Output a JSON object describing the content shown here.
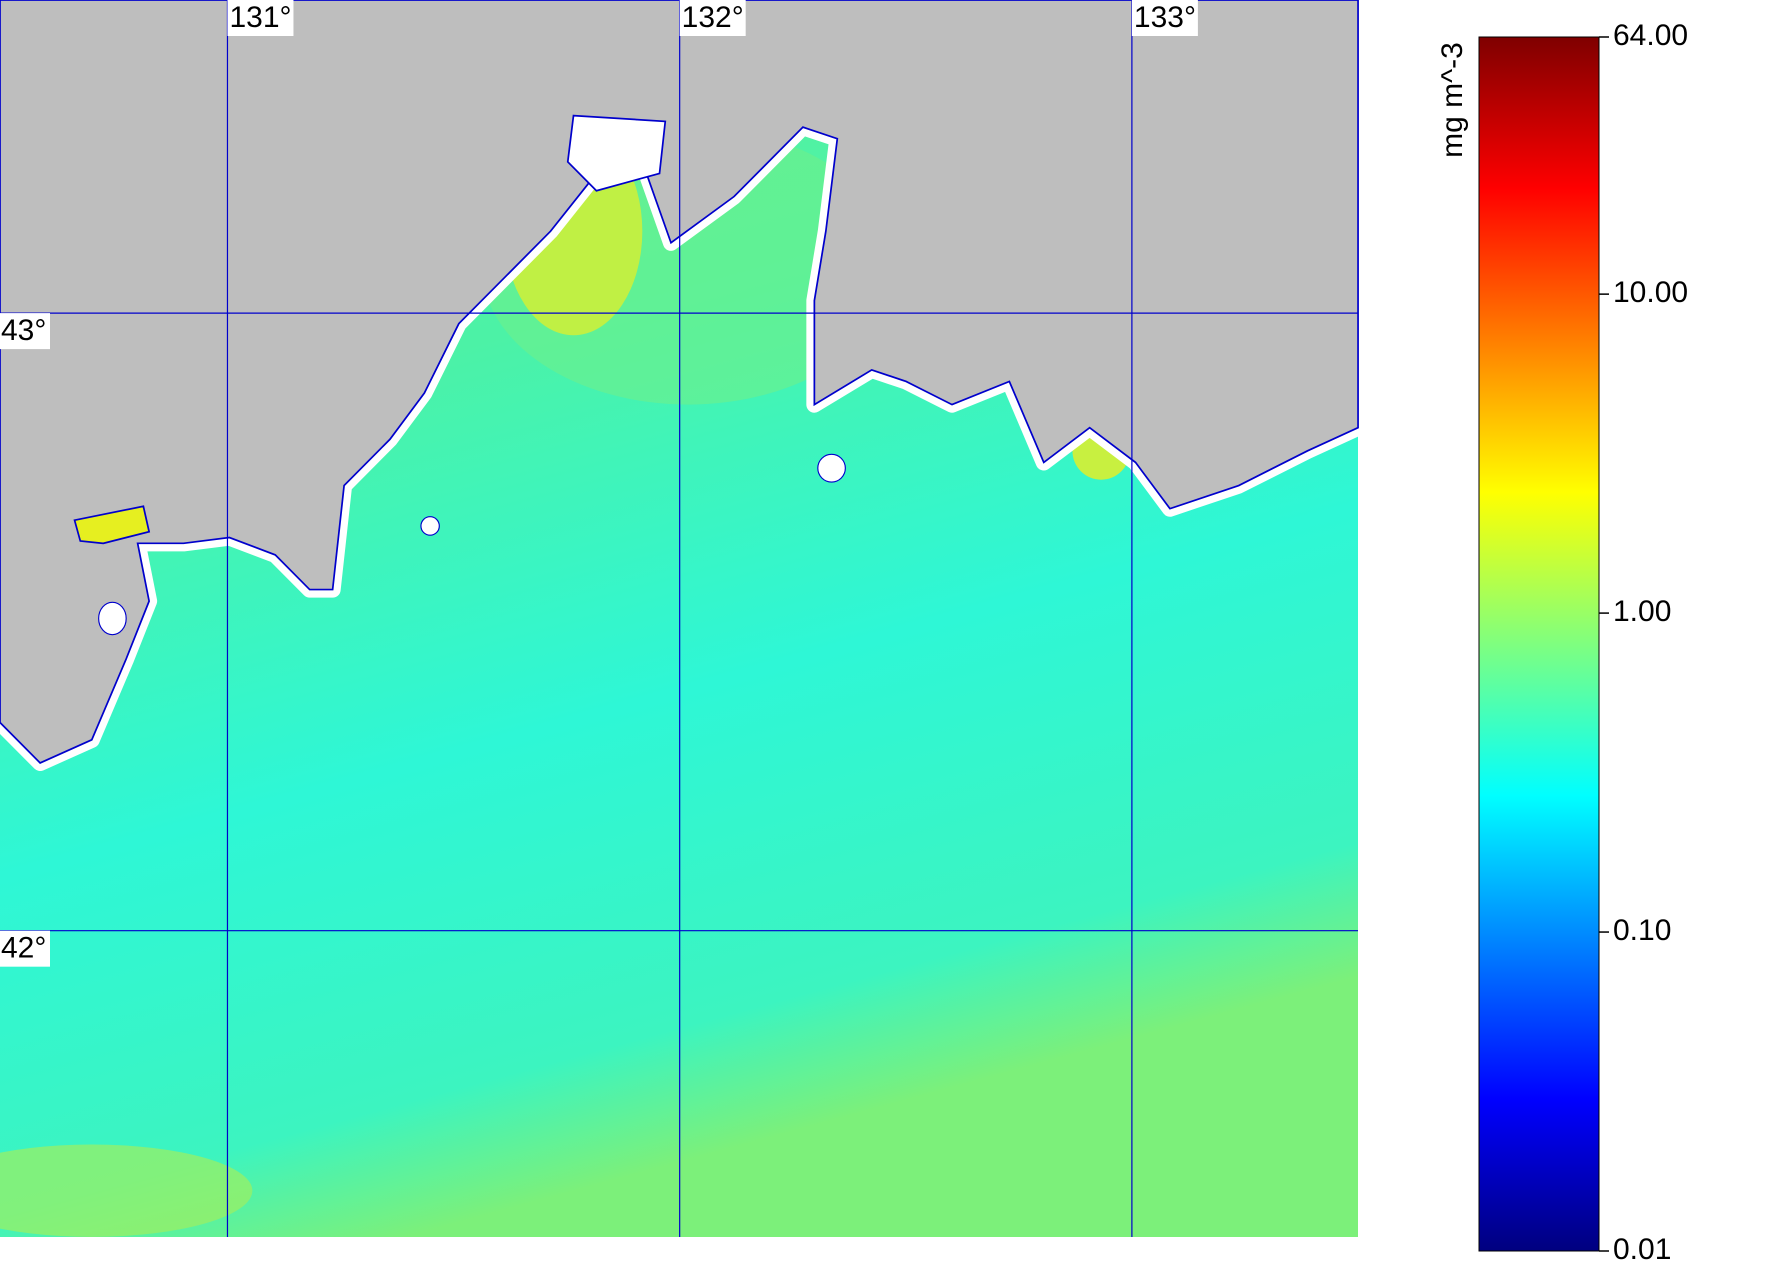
{
  "chart_data": {
    "type": "map",
    "xlim": [
      130.497,
      133.5
    ],
    "ylim": [
      41.504,
      43.507
    ],
    "xticks": [
      {
        "value": 131,
        "label": "131°"
      },
      {
        "value": 132,
        "label": "132°"
      },
      {
        "value": 133,
        "label": "133°"
      }
    ],
    "yticks": [
      {
        "value": 42,
        "label": "42°"
      },
      {
        "value": 43,
        "label": "43°"
      }
    ],
    "grid_color": "#0000cc",
    "colorbar": {
      "label": "mg m^-3",
      "scale": "log",
      "lim": [
        0.01,
        64
      ],
      "ticks": [
        {
          "value": 0.01,
          "label": "0.01"
        },
        {
          "value": 0.1,
          "label": "0.10"
        },
        {
          "value": 1,
          "label": "1.00"
        },
        {
          "value": 10,
          "label": "10.00"
        },
        {
          "value": 64,
          "label": "64.00"
        }
      ],
      "colors": [
        "#00007f",
        "#0000ff",
        "#007fff",
        "#00ffff",
        "#7fff7f",
        "#ffff00",
        "#ff7f00",
        "#ff0000",
        "#7f0000"
      ]
    }
  }
}
